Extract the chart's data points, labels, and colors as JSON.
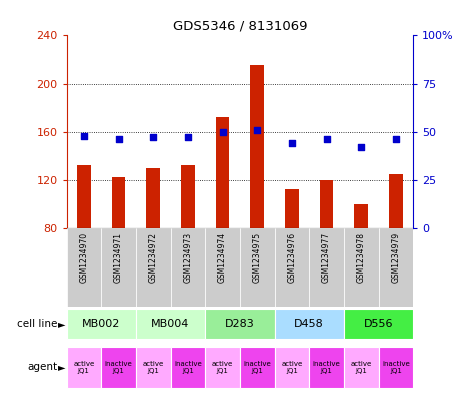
{
  "title": "GDS5346 / 8131069",
  "samples": [
    "GSM1234970",
    "GSM1234971",
    "GSM1234972",
    "GSM1234973",
    "GSM1234974",
    "GSM1234975",
    "GSM1234976",
    "GSM1234977",
    "GSM1234978",
    "GSM1234979"
  ],
  "counts": [
    132,
    122,
    130,
    132,
    172,
    215,
    112,
    120,
    100,
    125
  ],
  "percentiles": [
    48,
    46,
    47,
    47,
    50,
    51,
    44,
    46,
    42,
    46
  ],
  "ylim_left": [
    80,
    240
  ],
  "ylim_right": [
    0,
    100
  ],
  "yticks_left": [
    80,
    120,
    160,
    200,
    240
  ],
  "yticks_right": [
    0,
    25,
    50,
    75,
    100
  ],
  "cell_lines": [
    {
      "label": "MB002",
      "cols": [
        0,
        1
      ],
      "color": "#ccffcc"
    },
    {
      "label": "MB004",
      "cols": [
        2,
        3
      ],
      "color": "#ccffcc"
    },
    {
      "label": "D283",
      "cols": [
        4,
        5
      ],
      "color": "#99ee99"
    },
    {
      "label": "D458",
      "cols": [
        6,
        7
      ],
      "color": "#aaddff"
    },
    {
      "label": "D556",
      "cols": [
        8,
        9
      ],
      "color": "#44ee44"
    }
  ],
  "agents": [
    "active\nJQ1",
    "inactive\nJQ1",
    "active\nJQ1",
    "inactive\nJQ1",
    "active\nJQ1",
    "inactive\nJQ1",
    "active\nJQ1",
    "inactive\nJQ1",
    "active\nJQ1",
    "inactive\nJQ1"
  ],
  "agent_colors_active": "#ffaaff",
  "agent_colors_inactive": "#ee44ee",
  "bar_color": "#cc2200",
  "dot_color": "#0000cc",
  "grid_color": "#000000",
  "bg_color": "#ffffff",
  "sample_bg": "#cccccc",
  "left_axis_color": "#cc2200",
  "right_axis_color": "#0000cc",
  "chart_bg": "#ffffff"
}
